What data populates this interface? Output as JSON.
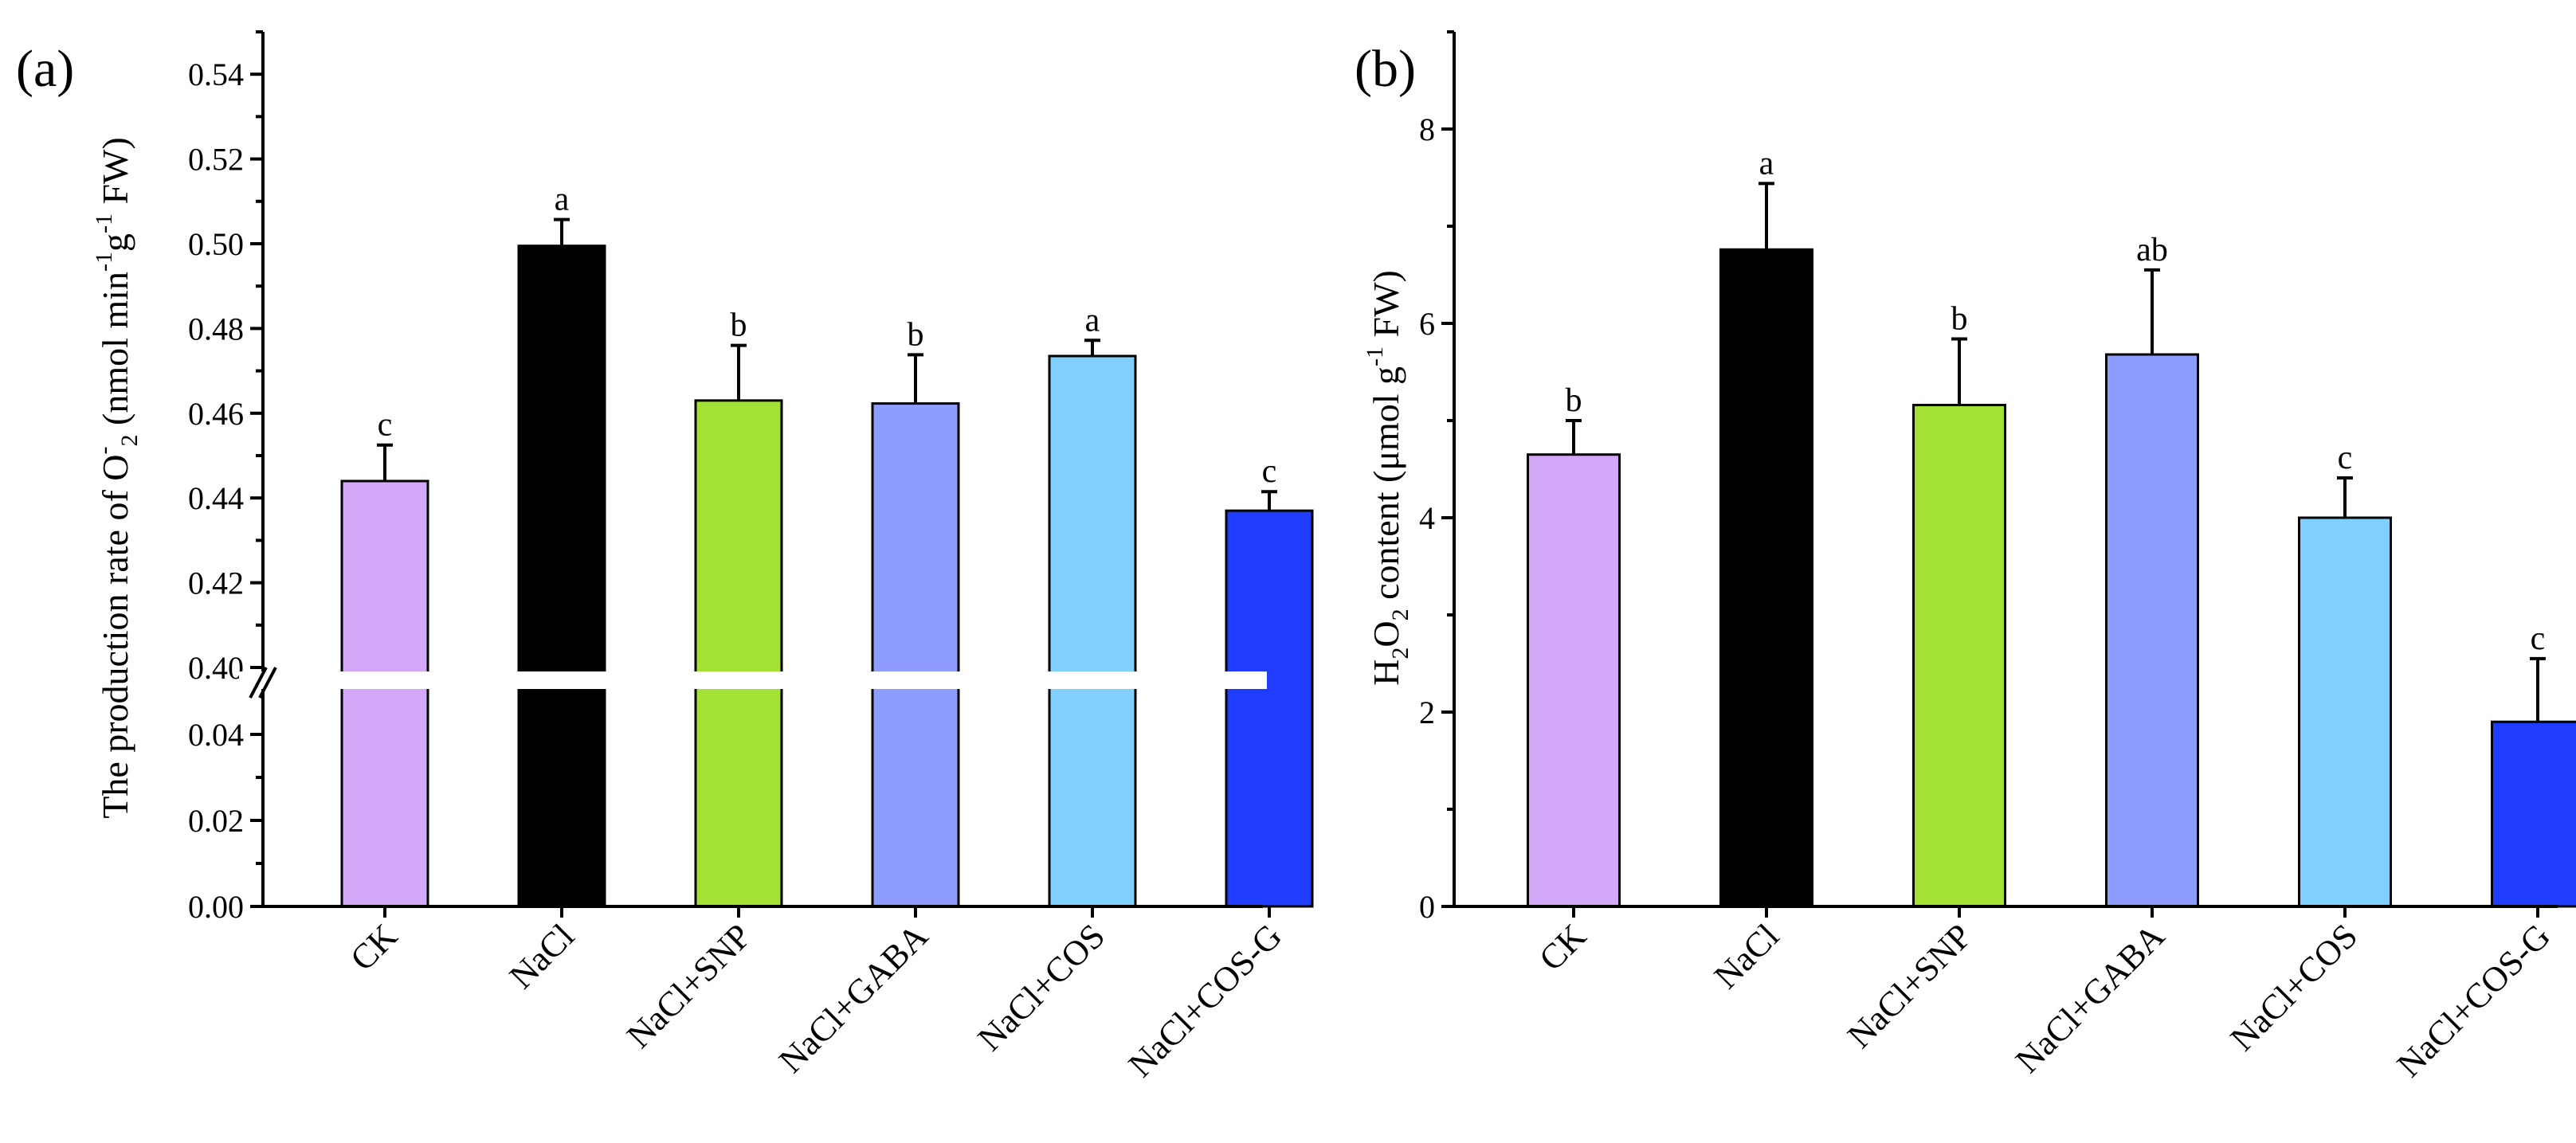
{
  "chart_data": [
    {
      "type": "bar",
      "panel_label": "(a)",
      "ylabel_parts": [
        "The production rate of O",
        "-",
        "2",
        " (nmol min",
        "-1",
        "g",
        "-1",
        " FW)"
      ],
      "categories": [
        "CK",
        "NaCl",
        "NaCl+SNP",
        "NaCl+GABA",
        "NaCl+COS",
        "NaCl+COS-G"
      ],
      "values": [
        0.444,
        0.4995,
        0.463,
        0.4623,
        0.4735,
        0.437
      ],
      "errors": [
        0.0085,
        0.0062,
        0.013,
        0.0115,
        0.0037,
        0.0045
      ],
      "significance": [
        "c",
        "a",
        "b",
        "b",
        "a",
        "c"
      ],
      "colors": [
        "#d4a8f8",
        "#000000",
        "#a3e234",
        "#8e9bff",
        "#80cfff",
        "#1f3cff"
      ],
      "axis_break": true,
      "lower_range": [
        0,
        0.05
      ],
      "lower_ticks": [
        "0.00",
        "0.02",
        "0.04"
      ],
      "upper_range": [
        0.4,
        0.55
      ],
      "upper_ticks": [
        "0.40",
        "0.42",
        "0.44",
        "0.46",
        "0.48",
        "0.50",
        "0.52",
        "0.54"
      ]
    },
    {
      "type": "bar",
      "panel_label": "(b)",
      "ylabel_parts": [
        "H",
        "2",
        "O",
        "2",
        " content (μmol g",
        "-1",
        " FW)"
      ],
      "categories": [
        "CK",
        "NaCl",
        "NaCl+SNP",
        "NaCl+GABA",
        "NaCl+COS",
        "NaCl+COS-G"
      ],
      "values": [
        4.65,
        6.76,
        5.16,
        5.68,
        4.0,
        1.9
      ],
      "errors": [
        0.35,
        0.68,
        0.68,
        0.87,
        0.41,
        0.65
      ],
      "significance": [
        "b",
        "a",
        "b",
        "ab",
        "c",
        "c"
      ],
      "colors": [
        "#d4a8f8",
        "#000000",
        "#a3e234",
        "#8e9bff",
        "#80cfff",
        "#1f3cff"
      ],
      "ylim": [
        0,
        9
      ],
      "yticks": [
        "0",
        "2",
        "4",
        "6",
        "8"
      ]
    }
  ]
}
